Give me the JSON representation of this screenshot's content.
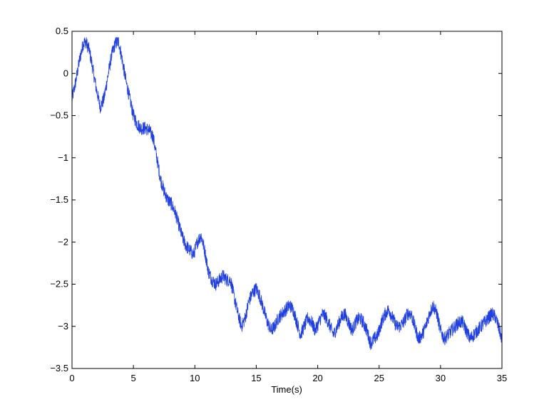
{
  "chart_data": {
    "type": "line",
    "title": "",
    "xlabel": "Time(s)",
    "ylabel": "",
    "xlim": [
      0,
      35
    ],
    "ylim": [
      -3.5,
      0.5
    ],
    "x_ticks": [
      0,
      5,
      10,
      15,
      20,
      25,
      30,
      35
    ],
    "y_ticks": [
      0.5,
      0,
      -0.5,
      -1,
      -1.5,
      -2,
      -2.5,
      -3,
      -3.5
    ],
    "x_tick_labels": [
      "0",
      "5",
      "10",
      "15",
      "20",
      "25",
      "30",
      "35"
    ],
    "y_tick_labels": [
      "0.5",
      "0",
      "−0.5",
      "−1",
      "−1.5",
      "−2",
      "−2.5",
      "−3",
      "−3.5"
    ],
    "grid": false,
    "legend": "none",
    "series": [
      {
        "color": "#1f3fe0",
        "x": [
          0,
          0.3,
          0.6,
          0.9,
          1.1,
          1.4,
          1.7,
          2.0,
          2.3,
          2.6,
          2.9,
          3.2,
          3.5,
          3.8,
          4.1,
          4.4,
          4.7,
          5.0,
          5.3,
          5.6,
          6.0,
          6.3,
          6.6,
          6.9,
          7.2,
          7.5,
          7.8,
          8.1,
          8.4,
          8.7,
          9.0,
          9.3,
          9.6,
          9.9,
          10.2,
          10.5,
          10.8,
          11.1,
          11.4,
          11.7,
          12.0,
          12.3,
          12.6,
          12.9,
          13.2,
          13.5,
          13.8,
          14.1,
          14.4,
          14.7,
          15.0,
          15.3,
          15.6,
          15.9,
          16.2,
          16.5,
          16.8,
          17.1,
          17.4,
          17.7,
          18.0,
          18.3,
          18.6,
          18.9,
          19.2,
          19.5,
          19.8,
          20.1,
          20.4,
          20.7,
          21.0,
          21.3,
          21.6,
          21.9,
          22.2,
          22.5,
          22.8,
          23.1,
          23.4,
          23.7,
          24.0,
          24.3,
          24.6,
          24.9,
          25.2,
          25.5,
          25.8,
          26.1,
          26.4,
          26.7,
          27.0,
          27.3,
          27.6,
          27.9,
          28.2,
          28.5,
          28.8,
          29.1,
          29.4,
          29.7,
          30.0,
          30.3,
          30.6,
          30.9,
          31.2,
          31.5,
          31.8,
          32.1,
          32.4,
          32.7,
          33.0,
          33.3,
          33.6,
          33.9,
          34.2,
          34.5,
          34.8,
          35.0
        ],
        "values": [
          -0.3,
          -0.1,
          0.15,
          0.35,
          0.38,
          0.28,
          0.05,
          -0.2,
          -0.4,
          -0.3,
          -0.05,
          0.2,
          0.35,
          0.38,
          0.15,
          -0.1,
          -0.3,
          -0.5,
          -0.6,
          -0.65,
          -0.65,
          -0.68,
          -0.75,
          -1.0,
          -1.25,
          -1.4,
          -1.5,
          -1.55,
          -1.65,
          -1.8,
          -1.95,
          -2.05,
          -2.1,
          -2.15,
          -2.0,
          -1.92,
          -2.1,
          -2.35,
          -2.45,
          -2.5,
          -2.45,
          -2.4,
          -2.45,
          -2.45,
          -2.65,
          -2.85,
          -3.0,
          -2.9,
          -2.7,
          -2.6,
          -2.55,
          -2.65,
          -2.8,
          -2.95,
          -3.05,
          -3.0,
          -2.9,
          -2.85,
          -2.8,
          -2.75,
          -2.8,
          -2.95,
          -3.1,
          -3.0,
          -2.9,
          -2.95,
          -3.05,
          -2.95,
          -2.85,
          -2.9,
          -3.0,
          -3.1,
          -3.0,
          -2.9,
          -2.85,
          -2.95,
          -3.05,
          -2.95,
          -2.9,
          -2.95,
          -3.05,
          -3.2,
          -3.15,
          -3.1,
          -2.95,
          -2.85,
          -2.8,
          -2.9,
          -3.0,
          -3.0,
          -2.95,
          -2.85,
          -2.85,
          -3.0,
          -3.15,
          -3.1,
          -3.0,
          -2.85,
          -2.75,
          -2.85,
          -3.05,
          -3.15,
          -3.1,
          -3.05,
          -3.0,
          -2.95,
          -2.95,
          -3.05,
          -3.15,
          -3.1,
          -3.05,
          -3.0,
          -2.95,
          -2.9,
          -2.85,
          -2.9,
          -3.05,
          -3.15
        ]
      }
    ]
  }
}
